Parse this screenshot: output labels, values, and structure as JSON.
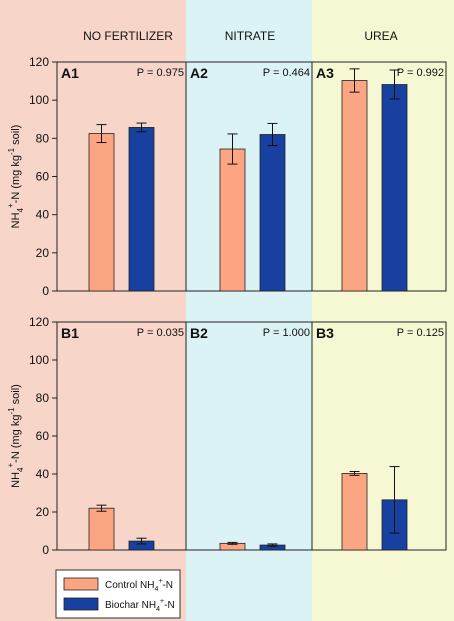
{
  "colors": {
    "panel_bg": [
      "#f7d6c9",
      "#dcf3f6",
      "#f5f8d2"
    ],
    "control": "#fca583",
    "biochar": "#1740a0"
  },
  "chart_data": {
    "type": "bar",
    "column_titles": [
      "NO FERTILIZER",
      "NITRATE",
      "UREA"
    ],
    "series_names": [
      "Control NH4+-N",
      "Biochar NH4+-N"
    ],
    "legend_placement": "bottom-left",
    "grid": false,
    "rows": [
      {
        "ylabel_main": "NH",
        "ylabel_sub": "4",
        "ylabel_sup": "+",
        "ylabel_mid": "-N (mg kg",
        "ylabel_sup2": "-1",
        "ylabel_end": " soil)",
        "ylim": [
          0,
          120
        ],
        "yticks": [
          "0",
          "20",
          "40",
          "60",
          "80",
          "100",
          "120"
        ],
        "panels": [
          {
            "label": "A1",
            "p_text": "P = 0.975",
            "values": [
              82.5,
              85.7
            ],
            "errors": [
              4.7,
              2.3
            ]
          },
          {
            "label": "A2",
            "p_text": "P = 0.464",
            "values": [
              74.4,
              82.0
            ],
            "errors": [
              7.9,
              5.8
            ]
          },
          {
            "label": "A3",
            "p_text": "P = 0.992",
            "values": [
              110.3,
              108.2
            ],
            "errors": [
              6.1,
              7.6
            ]
          }
        ]
      },
      {
        "ylabel_main": "NH",
        "ylabel_sub": "4",
        "ylabel_sup": "+",
        "ylabel_mid": "-N (mg kg",
        "ylabel_sup2": "-1",
        "ylabel_end": " soil)",
        "ylim": [
          0,
          120
        ],
        "yticks": [
          "0",
          "20",
          "40",
          "60",
          "80",
          "100",
          "120"
        ],
        "panels": [
          {
            "label": "B1",
            "p_text": "P = 0.035",
            "values": [
              22.0,
              4.7
            ],
            "errors": [
              1.6,
              1.5
            ]
          },
          {
            "label": "B2",
            "p_text": "P = 1.000",
            "values": [
              3.5,
              2.6
            ],
            "errors": [
              0.5,
              0.6
            ]
          },
          {
            "label": "B3",
            "p_text": "P = 0.125",
            "values": [
              40.3,
              26.4
            ],
            "errors": [
              1.0,
              17.5
            ]
          }
        ]
      }
    ]
  },
  "legend": {
    "items": [
      {
        "text": "Control NH",
        "sub": "4",
        "sup": "+",
        "end": "-N"
      },
      {
        "text": "Biochar NH",
        "sub": "4",
        "sup": "+",
        "end": "-N"
      }
    ]
  }
}
